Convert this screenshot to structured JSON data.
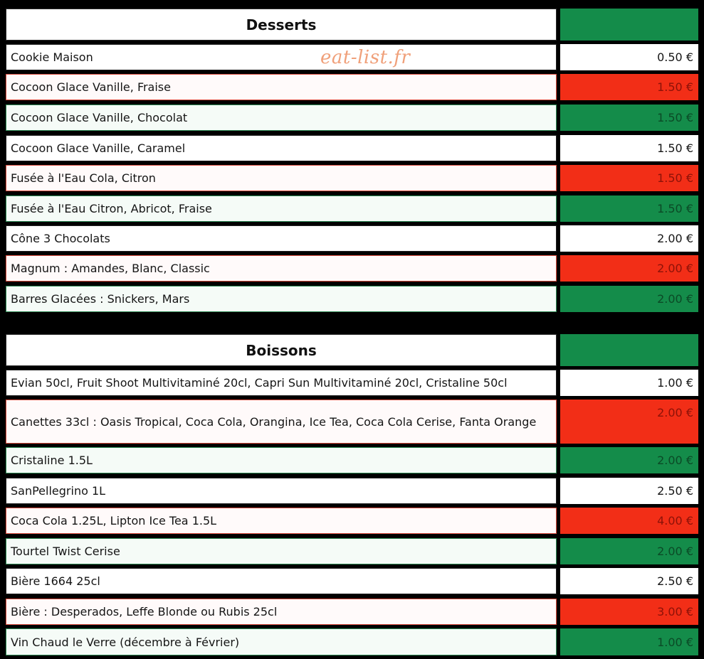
{
  "watermark": "eat-list.fr",
  "colors": {
    "green": "#148c4a",
    "red": "#f22e17",
    "white": "#ffffff",
    "background": "#000000"
  },
  "sections": [
    {
      "title": "Desserts",
      "items": [
        {
          "name": "Cookie Maison",
          "price": "0.50 €",
          "color": "white"
        },
        {
          "name": "Cocoon Glace Vanille, Fraise",
          "price": "1.50 €",
          "color": "red"
        },
        {
          "name": "Cocoon Glace Vanille, Chocolat",
          "price": "1.50 €",
          "color": "green"
        },
        {
          "name": "Cocoon Glace Vanille, Caramel",
          "price": "1.50 €",
          "color": "white"
        },
        {
          "name": "Fusée à l'Eau Cola, Citron",
          "price": "1.50 €",
          "color": "red"
        },
        {
          "name": "Fusée à l'Eau Citron, Abricot, Fraise",
          "price": "1.50 €",
          "color": "green"
        },
        {
          "name": "Cône 3 Chocolats",
          "price": "2.00 €",
          "color": "white"
        },
        {
          "name": "Magnum : Amandes, Blanc, Classic",
          "price": "2.00 €",
          "color": "red"
        },
        {
          "name": "Barres Glacées : Snickers, Mars",
          "price": "2.00 €",
          "color": "green"
        }
      ]
    },
    {
      "title": "Boissons",
      "items": [
        {
          "name": "Evian 50cl, Fruit Shoot Multivitaminé 20cl, Capri Sun Multivitaminé 20cl, Cristaline 50cl",
          "price": "1.00 €",
          "color": "white"
        },
        {
          "name": "Canettes 33cl : Oasis Tropical, Coca Cola, Orangina, Ice Tea, Coca Cola Cerise, Fanta Orange",
          "price": "2.00 €",
          "color": "red"
        },
        {
          "name": "Cristaline 1.5L",
          "price": "2.00 €",
          "color": "green"
        },
        {
          "name": "SanPellegrino 1L",
          "price": "2.50 €",
          "color": "white"
        },
        {
          "name": "Coca Cola 1.25L, Lipton Ice Tea 1.5L",
          "price": "4.00 €",
          "color": "red"
        },
        {
          "name": "Tourtel Twist Cerise",
          "price": "2.00 €",
          "color": "green"
        },
        {
          "name": "Bière 1664 25cl",
          "price": "2.50 €",
          "color": "white"
        },
        {
          "name": "Bière : Desperados, Leffe Blonde ou Rubis 25cl",
          "price": "3.00 €",
          "color": "red"
        },
        {
          "name": "Vin Chaud le Verre (décembre à Février)",
          "price": "1.00 €",
          "color": "green"
        }
      ]
    }
  ]
}
